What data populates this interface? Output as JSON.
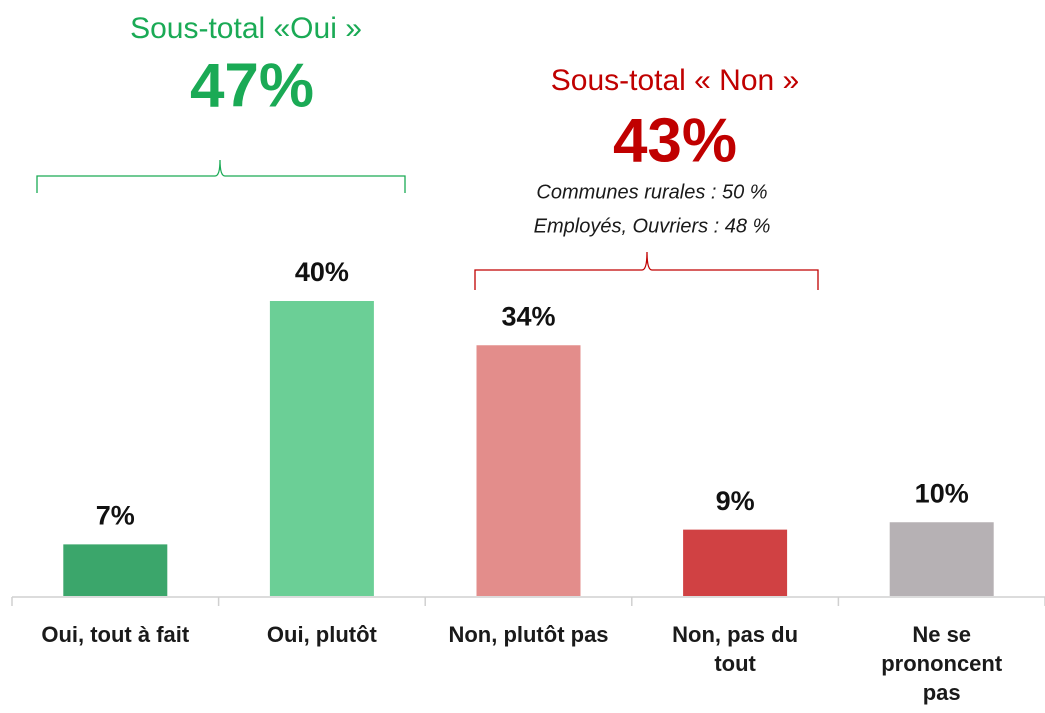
{
  "chart_data": {
    "type": "bar",
    "categories": [
      "Oui, tout à fait",
      "Oui, plutôt",
      "Non, plutôt pas",
      "Non, pas du tout",
      "Ne se prononcent pas"
    ],
    "values": [
      7,
      40,
      34,
      9,
      10
    ],
    "value_labels": [
      "7%",
      "40%",
      "34%",
      "9%",
      "10%"
    ],
    "colors": [
      "#3ba66b",
      "#6bcf96",
      "#e38d8b",
      "#d04143",
      "#b6b1b4"
    ],
    "annotations": {
      "oui_title": "Sous-total «Oui »",
      "oui_total": "47%",
      "non_title": "Sous-total « Non »",
      "non_total": "43%",
      "non_note_1": "Communes rurales : 50 %",
      "non_note_2": "Employés, Ouvriers : 48 %"
    }
  }
}
